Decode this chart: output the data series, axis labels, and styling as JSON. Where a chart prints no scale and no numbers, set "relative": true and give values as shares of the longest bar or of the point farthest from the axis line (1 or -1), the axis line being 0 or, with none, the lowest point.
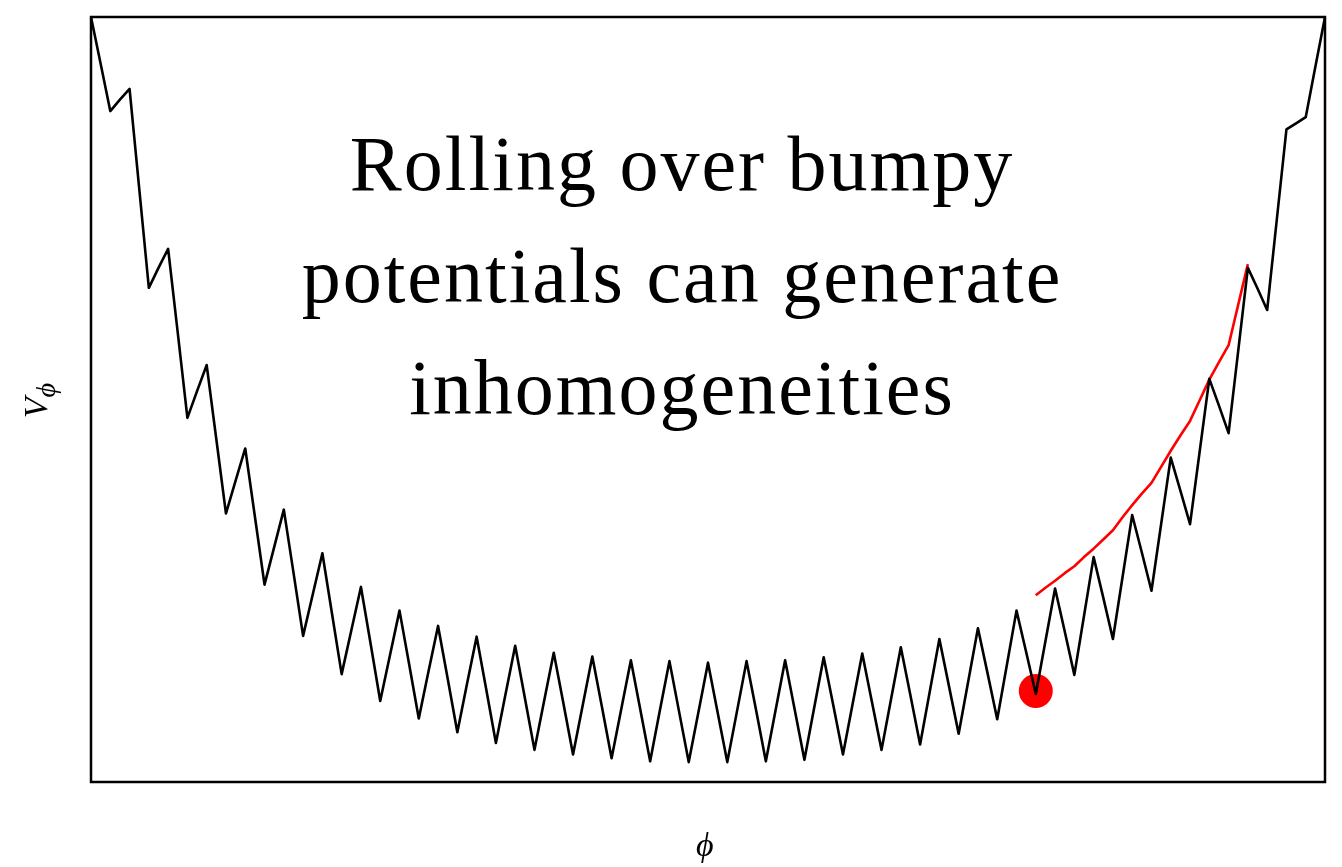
{
  "chart_data": {
    "type": "line",
    "relative": true,
    "xlabel": "ϕ",
    "ylabel": "V$_{ϕ}$",
    "annotations": [
      "Rolling over bumpy potentials can generate inhomogeneities"
    ],
    "legend": false,
    "marker": "none",
    "line_style": "solid",
    "categories": [
      null,
      null,
      null,
      null,
      null,
      null,
      null,
      null,
      null,
      null,
      null,
      null,
      null,
      null,
      null,
      null,
      null,
      null,
      null,
      null,
      null,
      null,
      null,
      null,
      null,
      null,
      null,
      null,
      null,
      null,
      null,
      null,
      null,
      null,
      null,
      null,
      null,
      null,
      null,
      null,
      null,
      null,
      null,
      null,
      null,
      null,
      null,
      null,
      null,
      null,
      null,
      null,
      null,
      null,
      null,
      null,
      null,
      null,
      null,
      null,
      null,
      null,
      null,
      null,
      null,
      null,
      null,
      null,
      null,
      null,
      null,
      null,
      null,
      null,
      null,
      null,
      null,
      null,
      null,
      null,
      null,
      null,
      null,
      null,
      null,
      null,
      null,
      null,
      null,
      null,
      null,
      null,
      null,
      null,
      null,
      null,
      null,
      null,
      null,
      null,
      null,
      null,
      null,
      null,
      null,
      null,
      null,
      null,
      null,
      null,
      null,
      null,
      null,
      null,
      null,
      null,
      null,
      null,
      null,
      null,
      null,
      null,
      null,
      null,
      null,
      null,
      null,
      null,
      null
    ],
    "series": [
      {
        "color": "#000000",
        "values": [
          1.0,
          0.939,
          0.877,
          0.892,
          0.906,
          0.776,
          0.646,
          0.672,
          0.697,
          0.587,
          0.476,
          0.511,
          0.545,
          0.448,
          0.351,
          0.394,
          0.436,
          0.347,
          0.258,
          0.307,
          0.356,
          0.274,
          0.191,
          0.245,
          0.299,
          0.22,
          0.141,
          0.198,
          0.255,
          0.181,
          0.106,
          0.165,
          0.224,
          0.154,
          0.083,
          0.144,
          0.204,
          0.135,
          0.065,
          0.128,
          0.19,
          0.121,
          0.051,
          0.115,
          0.178,
          0.11,
          0.042,
          0.106,
          0.169,
          0.103,
          0.036,
          0.1,
          0.164,
          0.098,
          0.031,
          0.095,
          0.159,
          0.093,
          0.027,
          0.093,
          0.158,
          0.092,
          0.026,
          0.091,
          0.156,
          0.091,
          0.026,
          0.092,
          0.158,
          0.093,
          0.027,
          0.093,
          0.159,
          0.094,
          0.029,
          0.096,
          0.163,
          0.1,
          0.036,
          0.102,
          0.168,
          0.105,
          0.042,
          0.109,
          0.176,
          0.113,
          0.049,
          0.118,
          0.187,
          0.125,
          0.063,
          0.132,
          0.201,
          0.142,
          0.082,
          0.153,
          0.224,
          0.17,
          0.115,
          0.184,
          0.253,
          0.197,
          0.14,
          0.217,
          0.294,
          0.241,
          0.187,
          0.268,
          0.349,
          0.3,
          0.25,
          0.337,
          0.424,
          0.381,
          0.337,
          0.432,
          0.527,
          0.492,
          0.456,
          0.564,
          0.672,
          0.645,
          0.617,
          0.735,
          0.853,
          0.861,
          0.869,
          0.935,
          1.0
        ]
      },
      {
        "color": "#ff0000",
        "values": [
          null,
          null,
          null,
          null,
          null,
          null,
          null,
          null,
          null,
          null,
          null,
          null,
          null,
          null,
          null,
          null,
          null,
          null,
          null,
          null,
          null,
          null,
          null,
          null,
          null,
          null,
          null,
          null,
          null,
          null,
          null,
          null,
          null,
          null,
          null,
          null,
          null,
          null,
          null,
          null,
          null,
          null,
          null,
          null,
          null,
          null,
          null,
          null,
          null,
          null,
          null,
          null,
          null,
          null,
          null,
          null,
          null,
          null,
          null,
          null,
          null,
          null,
          null,
          null,
          null,
          null,
          null,
          null,
          null,
          null,
          null,
          null,
          null,
          null,
          null,
          null,
          null,
          null,
          null,
          null,
          null,
          null,
          null,
          null,
          null,
          null,
          null,
          null,
          null,
          null,
          null,
          null,
          null,
          null,
          null,
          null,
          null,
          null,
          0.244,
          0.254,
          0.263,
          0.273,
          0.282,
          0.294,
          0.305,
          0.317,
          0.329,
          0.346,
          0.362,
          0.377,
          0.391,
          0.412,
          0.433,
          0.453,
          0.472,
          0.499,
          0.526,
          0.549,
          0.571,
          0.624,
          0.677,
          null,
          null,
          null,
          null,
          null,
          null,
          null,
          null
        ]
      },
      {
        "marker": "circle",
        "color": "#ff0000",
        "values": [
          null,
          null,
          null,
          null,
          null,
          null,
          null,
          null,
          null,
          null,
          null,
          null,
          null,
          null,
          null,
          null,
          null,
          null,
          null,
          null,
          null,
          null,
          null,
          null,
          null,
          null,
          null,
          null,
          null,
          null,
          null,
          null,
          null,
          null,
          null,
          null,
          null,
          null,
          null,
          null,
          null,
          null,
          null,
          null,
          null,
          null,
          null,
          null,
          null,
          null,
          null,
          null,
          null,
          null,
          null,
          null,
          null,
          null,
          null,
          null,
          null,
          null,
          null,
          null,
          null,
          null,
          null,
          null,
          null,
          null,
          null,
          null,
          null,
          null,
          null,
          null,
          null,
          null,
          null,
          null,
          null,
          null,
          null,
          null,
          null,
          null,
          null,
          null,
          null,
          null,
          null,
          null,
          null,
          null,
          null,
          null,
          null,
          null,
          0.119,
          null,
          null,
          null,
          null,
          null,
          null,
          null,
          null,
          null,
          null,
          null,
          null,
          null,
          null,
          null,
          null,
          null,
          null,
          null,
          null,
          null,
          null,
          null,
          null,
          null,
          null,
          null,
          null,
          null,
          null
        ]
      }
    ]
  }
}
